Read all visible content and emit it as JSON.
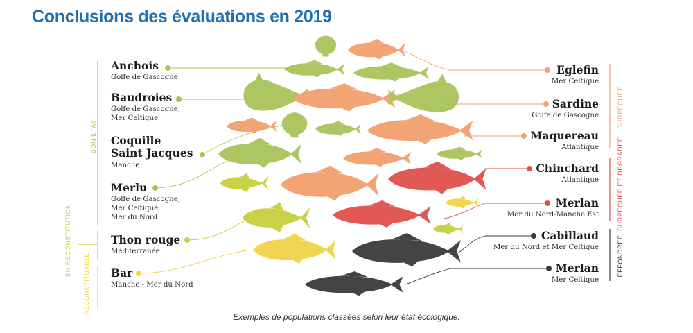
{
  "title": "Conclusions des évaluations en 2019",
  "caption": "Exemples de populations classées selon leur état écologique.",
  "colors": {
    "bon_etat": "#a9c35a",
    "reconstitution": "#c7cf3d",
    "reconstituable": "#f2d24a",
    "surpeche": "#f2a06d",
    "degradee": "#e0504b",
    "effondree": "#3a3a3a"
  },
  "categories": {
    "bon_etat": "BON ÉTAT",
    "reconstitution": "EN RECONSTITUTION",
    "reconstituable": "RECONSTITUABLE",
    "surpeche": "SURPÊCHÉE",
    "degradee": "SURPÊCHÉE ET DÉGRADÉE",
    "effondree": "EFFONDRÉE"
  },
  "left_species": [
    {
      "name": "Anchois",
      "region": [
        "Golfe de Gascogne"
      ]
    },
    {
      "name": "Baudroies",
      "region": [
        "Golfe de Gascogne,",
        "Mer Celtique"
      ]
    },
    {
      "name": "Coquille Saint Jacques",
      "name_lines": [
        "Coquille",
        "Saint Jacques"
      ],
      "region": [
        "Manche"
      ]
    },
    {
      "name": "Merlu",
      "region": [
        "Golfe de Gascogne,",
        "Mer Celtique,",
        "Mer du Nord"
      ]
    },
    {
      "name": "Thon rouge",
      "region": [
        "Méditerranée"
      ]
    },
    {
      "name": "Bar",
      "region": [
        "Manche - Mer du Nord"
      ]
    }
  ],
  "right_species": [
    {
      "name": "Eglefin",
      "region": [
        "Mer Celtique"
      ]
    },
    {
      "name": "Sardine",
      "region": [
        "Golfe de Gascogne"
      ]
    },
    {
      "name": "Maquereau",
      "region": [
        "Atlantique"
      ]
    },
    {
      "name": "Chinchard",
      "region": [
        "Atlantique"
      ]
    },
    {
      "name": "Merlan",
      "region": [
        "Mer du Nord-Manche Est"
      ]
    },
    {
      "name": "Cabillaud",
      "region": [
        "Mer du Nord et Mer Celtique"
      ]
    },
    {
      "name": "Merlan",
      "region": [
        "Mer Celtique"
      ]
    }
  ]
}
